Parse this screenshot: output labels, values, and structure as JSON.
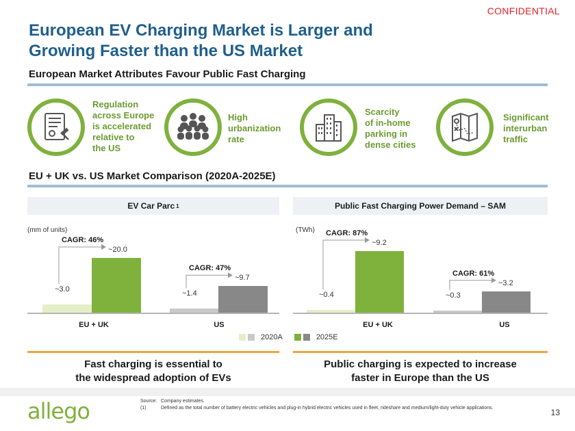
{
  "confidential": "CONFIDENTIAL",
  "title_line1": "European EV Charging Market is Larger and",
  "title_line2": "Growing Faster than the US Market",
  "section1": "European Market Attributes Favour Public Fast Charging",
  "attributes": [
    {
      "icon": "document-gavel-icon",
      "lines": [
        "Regulation",
        "across Europe",
        "is accelerated",
        "relative to",
        "the US"
      ]
    },
    {
      "icon": "crowd-icon",
      "lines": [
        "High",
        "urbanization",
        "rate"
      ]
    },
    {
      "icon": "city-buildings-icon",
      "lines": [
        "Scarcity",
        "of in-home",
        "parking in",
        "dense cities"
      ]
    },
    {
      "icon": "map-icon",
      "lines": [
        "Significant",
        "interurban",
        "traffic"
      ]
    }
  ],
  "section2": "EU + UK vs. US Market Comparison (2020A-2025E)",
  "colors": {
    "light_green": "#e4efc8",
    "green": "#7fb13d",
    "light_gray": "#c9c9c9",
    "gray": "#888888"
  },
  "chart_data": [
    {
      "type": "bar",
      "title": "EV Car Parc ",
      "title_sup": "1",
      "unit": "(mm of units)",
      "categories": [
        "EU + UK",
        "US"
      ],
      "series": [
        {
          "name": "2020A",
          "values": [
            3.0,
            1.4
          ],
          "labels": [
            "~3.0",
            "~1.4"
          ]
        },
        {
          "name": "2025E",
          "values": [
            20.0,
            9.7
          ],
          "labels": [
            "~20.0",
            "~9.7"
          ]
        }
      ],
      "cagr": [
        "CAGR: 46%",
        "CAGR: 47%"
      ],
      "ymax": 20.0
    },
    {
      "type": "bar",
      "title": "Public Fast Charging Power Demand – SAM",
      "unit": "(TWh)",
      "categories": [
        "EU + UK",
        "US"
      ],
      "series": [
        {
          "name": "2020A",
          "values": [
            0.4,
            0.3
          ],
          "labels": [
            "~0.4",
            "~0.3"
          ]
        },
        {
          "name": "2025E",
          "values": [
            9.2,
            3.2
          ],
          "labels": [
            "~9.2",
            "~3.2"
          ]
        }
      ],
      "cagr": [
        "CAGR: 87%",
        "CAGR: 61%"
      ],
      "ymax": 9.2
    }
  ],
  "legend": {
    "a": "2020A",
    "b": "2025E"
  },
  "takeaway1": [
    "Fast charging is essential to",
    "the widespread adoption of EVs"
  ],
  "takeaway2": [
    "Public charging is expected to increase",
    "faster in Europe than the US"
  ],
  "source_label": "Source:",
  "source_text": "Company estimates.",
  "note_label": "(1)",
  "note_text": "Defined as the total number of battery electric vehicles and plug-in hybrid electric vehicles used in fleet, rideshare and medium/light-duty vehicle applications.",
  "logo": "allego",
  "page": "13"
}
